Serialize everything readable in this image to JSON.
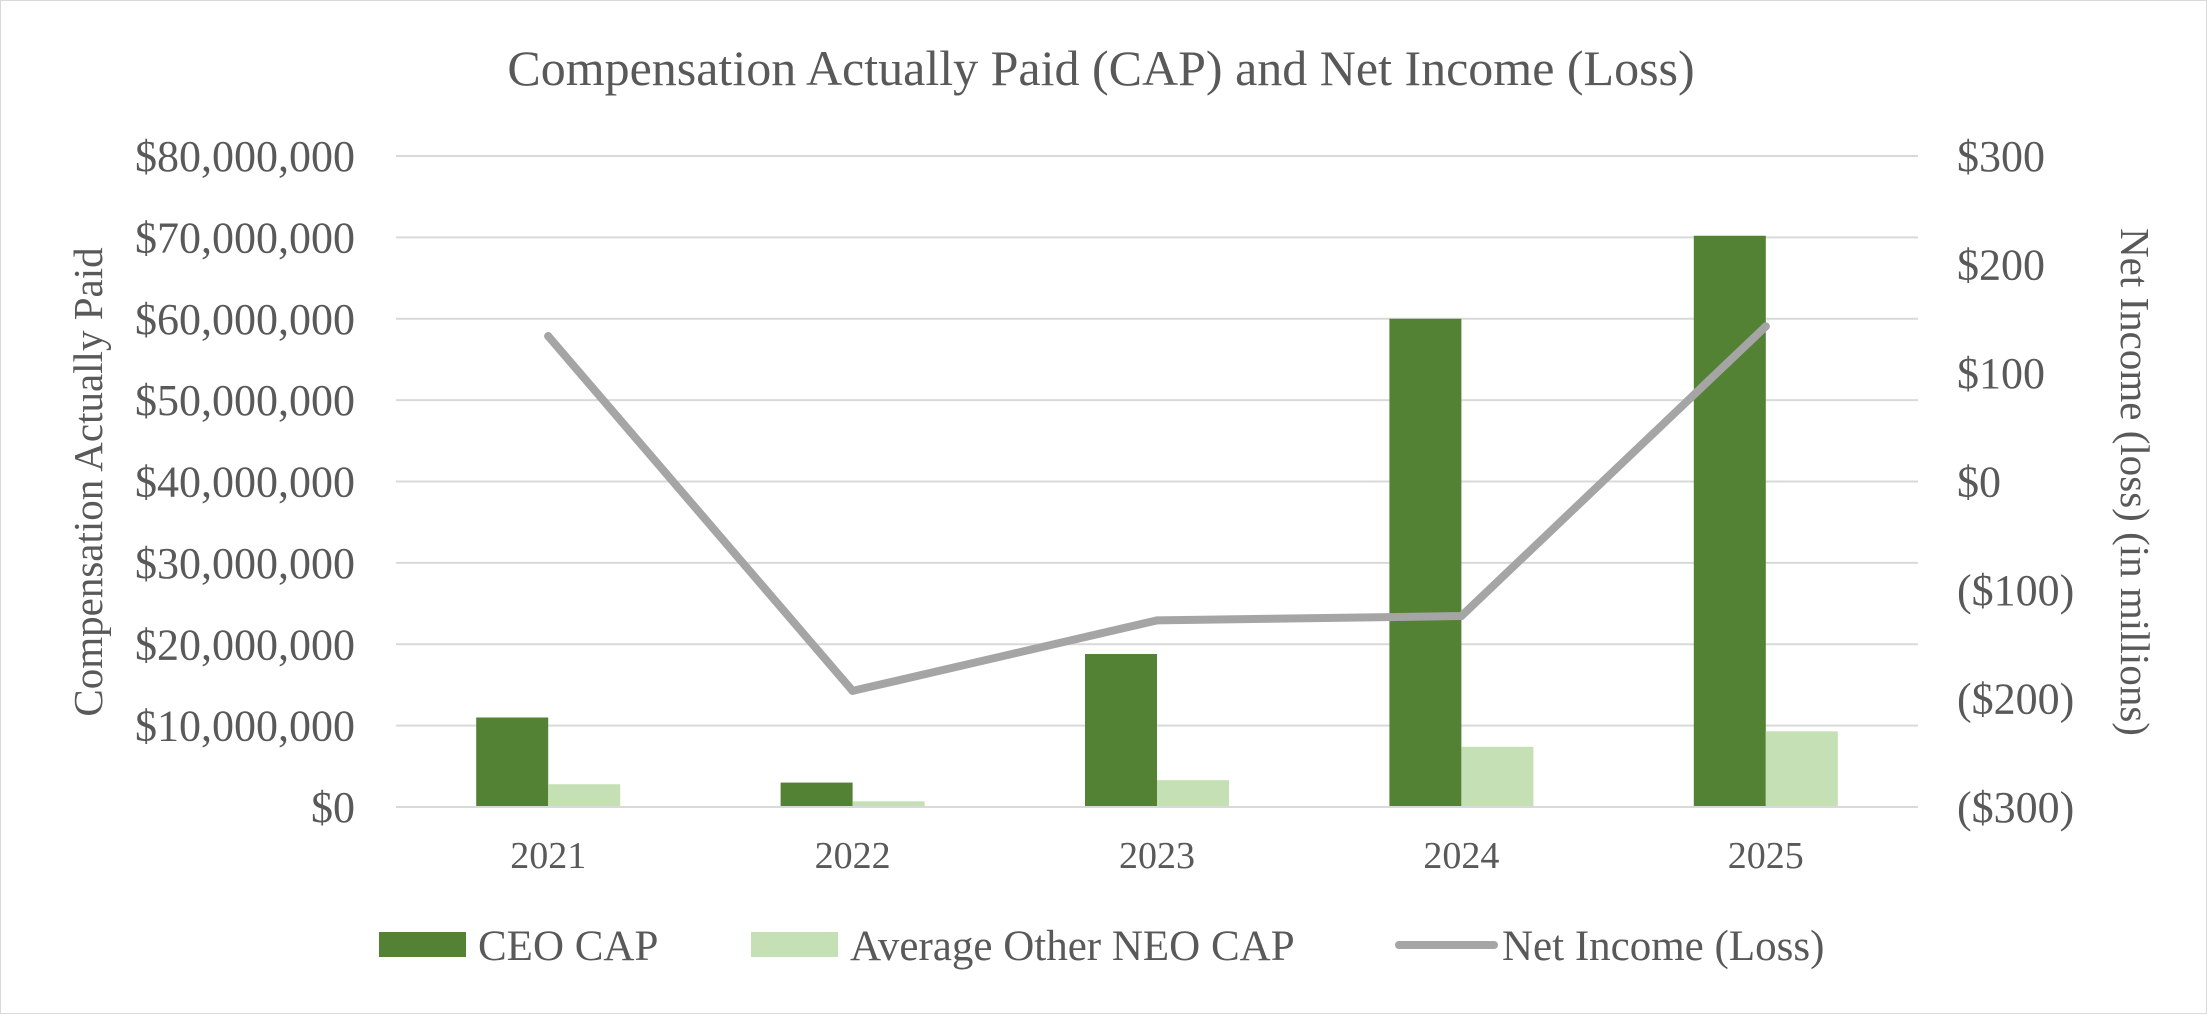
{
  "chart_data": {
    "type": "bar",
    "title": "Compensation Actually Paid (CAP) and Net Income (Loss)",
    "categories": [
      "2021",
      "2022",
      "2023",
      "2024",
      "2025"
    ],
    "y_left": {
      "label": "Compensation Actually Paid",
      "min": 0,
      "max": 80000000,
      "ticks": [
        "$0",
        "$10,000,000",
        "$20,000,000",
        "$30,000,000",
        "$40,000,000",
        "$50,000,000",
        "$60,000,000",
        "$70,000,000",
        "$80,000,000"
      ]
    },
    "y_right": {
      "label": "Net Income (loss) (in millions)",
      "min": -300,
      "max": 300,
      "ticks": [
        "($300)",
        "($200)",
        "($100)",
        "$0",
        "$100",
        "$200",
        "$300"
      ]
    },
    "series": [
      {
        "name": "CEO CAP",
        "type": "bar",
        "axis": "left",
        "color": "#548235",
        "values": [
          11000000,
          3000000,
          18800000,
          60000000,
          70200000
        ]
      },
      {
        "name": "Average Other NEO CAP",
        "type": "bar",
        "axis": "left",
        "color": "#c5e0b4",
        "values": [
          2800000,
          700000,
          3300000,
          7400000,
          9300000
        ]
      },
      {
        "name": "Net Income (Loss)",
        "type": "line",
        "axis": "right",
        "color": "#a5a5a5",
        "values": [
          134,
          -193,
          -128,
          -124,
          143
        ]
      }
    ],
    "grid": true,
    "legend": "bottom"
  }
}
